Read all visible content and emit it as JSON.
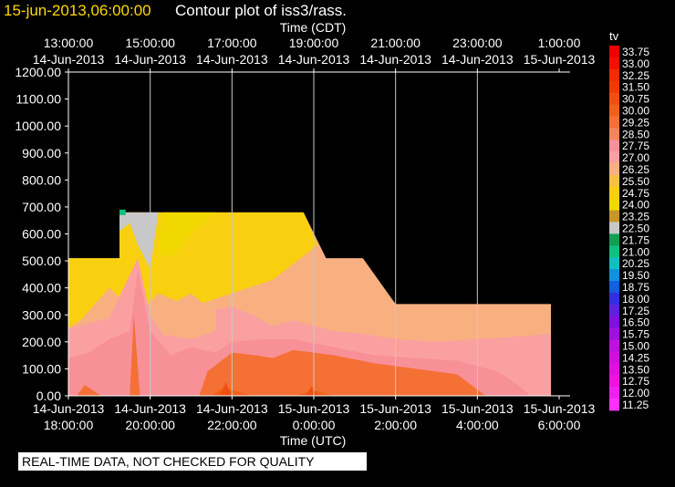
{
  "header": {
    "date_label": "15-jun-2013,06:00:00",
    "title": "Contour plot of iss3/rass."
  },
  "notice": "REAL-TIME DATA, NOT CHECKED FOR QUALITY",
  "colors": {
    "background": "#000000",
    "grid": "#c8c8c8",
    "axis": "#ffffff"
  },
  "chart_data": {
    "type": "heatmap",
    "title": "Contour plot of iss3/rass.",
    "top_axis": {
      "label": "Time (CDT)",
      "ticks": [
        [
          "13:00:00",
          "14-Jun-2013"
        ],
        [
          "15:00:00",
          "14-Jun-2013"
        ],
        [
          "17:00:00",
          "14-Jun-2013"
        ],
        [
          "19:00:00",
          "14-Jun-2013"
        ],
        [
          "21:00:00",
          "14-Jun-2013"
        ],
        [
          "23:00:00",
          "14-Jun-2013"
        ],
        [
          "1:00:00",
          "15-Jun-2013"
        ]
      ]
    },
    "bottom_axis": {
      "label": "Time (UTC)",
      "ticks": [
        [
          "14-Jun-2013",
          "18:00:00"
        ],
        [
          "14-Jun-2013",
          "20:00:00"
        ],
        [
          "14-Jun-2013",
          "22:00:00"
        ],
        [
          "15-Jun-2013",
          "0:00:00"
        ],
        [
          "15-Jun-2013",
          "2:00:00"
        ],
        [
          "15-Jun-2013",
          "4:00:00"
        ],
        [
          "15-Jun-2013",
          "6:00:00"
        ]
      ]
    },
    "x_range_hours": [
      0,
      12
    ],
    "y_axis": {
      "ticks": [
        "0.00",
        "100.00",
        "200.00",
        "300.00",
        "400.00",
        "500.00",
        "600.00",
        "700.00",
        "800.00",
        "900.00",
        "1000.00",
        "1100.00",
        "1200.00"
      ],
      "ylim": [
        0,
        1200
      ]
    },
    "grid": true,
    "legend": {
      "title": "tv",
      "levels": [
        "33.75",
        "33.00",
        "32.25",
        "31.50",
        "30.75",
        "30.00",
        "29.25",
        "28.50",
        "27.75",
        "27.00",
        "26.25",
        "25.50",
        "24.75",
        "24.00",
        "23.25",
        "22.50",
        "21.75",
        "21.00",
        "20.25",
        "19.50",
        "18.75",
        "18.00",
        "17.25",
        "16.50",
        "15.75",
        "15.00",
        "14.25",
        "13.50",
        "12.75",
        "12.00",
        "11.25"
      ],
      "colors": [
        "#f00000",
        "#f21000",
        "#f42a00",
        "#f03c00",
        "#f24e10",
        "#f06018",
        "#f47034",
        "#f5845a",
        "#f89098",
        "#fba0a0",
        "#f8b080",
        "#f8c040",
        "#f8d010",
        "#f0d800",
        "#c89628",
        "#c8c8c8",
        "#10a050",
        "#10c080",
        "#10c0c0",
        "#1090e0",
        "#1060e0",
        "#3030e0",
        "#6020e0",
        "#8010e0",
        "#a010e0",
        "#c010e0",
        "#d010e0",
        "#e010e0",
        "#f010e0",
        "#f020f0",
        "#ff30ff"
      ]
    },
    "regions": [
      {
        "level": "26.25",
        "note": "overall envelope",
        "points": [
          [
            0,
            0
          ],
          [
            0,
            510
          ],
          [
            1.25,
            510
          ],
          [
            1.25,
            680
          ],
          [
            5.75,
            680
          ],
          [
            6.3,
            510
          ],
          [
            7.2,
            510
          ],
          [
            8.0,
            340
          ],
          [
            11.8,
            340
          ],
          [
            11.8,
            0
          ]
        ]
      },
      {
        "level": "24.75",
        "points": [
          [
            0,
            250
          ],
          [
            0,
            510
          ],
          [
            1.25,
            510
          ],
          [
            1.25,
            680
          ],
          [
            5.75,
            680
          ],
          [
            6.1,
            560
          ],
          [
            5.0,
            430
          ],
          [
            4.0,
            380
          ],
          [
            3.0,
            330
          ],
          [
            2.2,
            380
          ],
          [
            1.7,
            300
          ],
          [
            1.0,
            400
          ],
          [
            0.3,
            280
          ]
        ]
      },
      {
        "level": "24.00",
        "points": [
          [
            2.2,
            520
          ],
          [
            2.3,
            680
          ],
          [
            3.6,
            680
          ],
          [
            3.0,
            600
          ],
          [
            2.6,
            520
          ]
        ]
      },
      {
        "level": "22.50",
        "points": [
          [
            1.25,
            610
          ],
          [
            1.25,
            680
          ],
          [
            2.2,
            680
          ],
          [
            2.0,
            470
          ],
          [
            1.7,
            560
          ],
          [
            1.5,
            640
          ]
        ]
      },
      {
        "level": "21.00",
        "points": [
          [
            1.25,
            670
          ],
          [
            1.25,
            690
          ],
          [
            1.4,
            690
          ],
          [
            1.4,
            670
          ]
        ]
      },
      {
        "level": "27.00",
        "points": [
          [
            0,
            0
          ],
          [
            0,
            250
          ],
          [
            0.3,
            260
          ],
          [
            1.0,
            290
          ],
          [
            1.7,
            510
          ],
          [
            2.0,
            300
          ],
          [
            2.3,
            230
          ],
          [
            3.0,
            210
          ],
          [
            3.6,
            240
          ],
          [
            3.6,
            320
          ],
          [
            4.0,
            330
          ],
          [
            4.5,
            300
          ],
          [
            5.0,
            260
          ],
          [
            5.5,
            280
          ],
          [
            6.5,
            240
          ],
          [
            7.2,
            230
          ],
          [
            8.0,
            210
          ],
          [
            9.0,
            200
          ],
          [
            10.0,
            210
          ],
          [
            11.0,
            220
          ],
          [
            11.8,
            230
          ],
          [
            11.8,
            0
          ]
        ]
      },
      {
        "level": "26.25",
        "points": [
          [
            2.3,
            220
          ],
          [
            2.5,
            340
          ],
          [
            3.0,
            380
          ],
          [
            3.4,
            330
          ],
          [
            3.2,
            250
          ]
        ]
      },
      {
        "level": "27.75",
        "points": [
          [
            0,
            0
          ],
          [
            0,
            140
          ],
          [
            0.5,
            160
          ],
          [
            1.0,
            210
          ],
          [
            1.5,
            240
          ],
          [
            1.7,
            470
          ],
          [
            2.0,
            240
          ],
          [
            2.5,
            150
          ],
          [
            3.0,
            180
          ],
          [
            3.6,
            160
          ],
          [
            4.0,
            200
          ],
          [
            4.8,
            210
          ],
          [
            5.5,
            210
          ],
          [
            6.5,
            180
          ],
          [
            7.5,
            150
          ],
          [
            8.5,
            140
          ],
          [
            9.5,
            130
          ],
          [
            10.5,
            90
          ],
          [
            11.0,
            40
          ],
          [
            11.3,
            0
          ]
        ]
      },
      {
        "level": "29.25",
        "points": [
          [
            0.2,
            0
          ],
          [
            0.4,
            40
          ],
          [
            0.8,
            0
          ]
        ]
      },
      {
        "level": "29.25",
        "points": [
          [
            1.5,
            0
          ],
          [
            1.6,
            300
          ],
          [
            1.75,
            0
          ]
        ]
      },
      {
        "level": "29.25",
        "points": [
          [
            3.2,
            0
          ],
          [
            3.4,
            90
          ],
          [
            4.0,
            160
          ],
          [
            4.6,
            150
          ],
          [
            5.0,
            140
          ],
          [
            5.5,
            170
          ],
          [
            6.5,
            150
          ],
          [
            7.5,
            120
          ],
          [
            8.5,
            100
          ],
          [
            9.5,
            80
          ],
          [
            10.2,
            0
          ]
        ]
      },
      {
        "level": "30.00",
        "points": [
          [
            3.5,
            0
          ],
          [
            3.8,
            30
          ],
          [
            4.5,
            0
          ]
        ]
      },
      {
        "level": "30.00",
        "points": [
          [
            5.5,
            0
          ],
          [
            6.0,
            20
          ],
          [
            6.5,
            0
          ]
        ]
      },
      {
        "level": "30.75",
        "points": [
          [
            3.7,
            0
          ],
          [
            3.85,
            50
          ],
          [
            4.0,
            0
          ]
        ]
      },
      {
        "level": "30.75",
        "points": [
          [
            5.8,
            0
          ],
          [
            5.95,
            35
          ],
          [
            6.1,
            0
          ]
        ]
      }
    ]
  }
}
